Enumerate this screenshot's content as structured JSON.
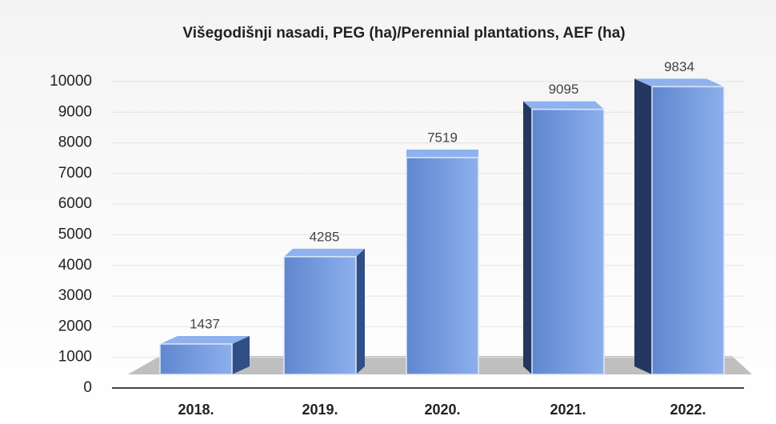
{
  "chart_data": {
    "type": "bar",
    "title": "Višegodišnji nasadi, PEG (ha)/Perennial plantations, AEF (ha)",
    "categories": [
      "2018.",
      "2019.",
      "2020.",
      "2021.",
      "2022."
    ],
    "values": [
      1437,
      4285,
      7519,
      9095,
      9834
    ],
    "color": "#6f93d6",
    "ylim": [
      0,
      10000
    ],
    "yticks": [
      0,
      1000,
      2000,
      3000,
      4000,
      5000,
      6000,
      7000,
      8000,
      9000,
      10000
    ],
    "grid": true
  }
}
